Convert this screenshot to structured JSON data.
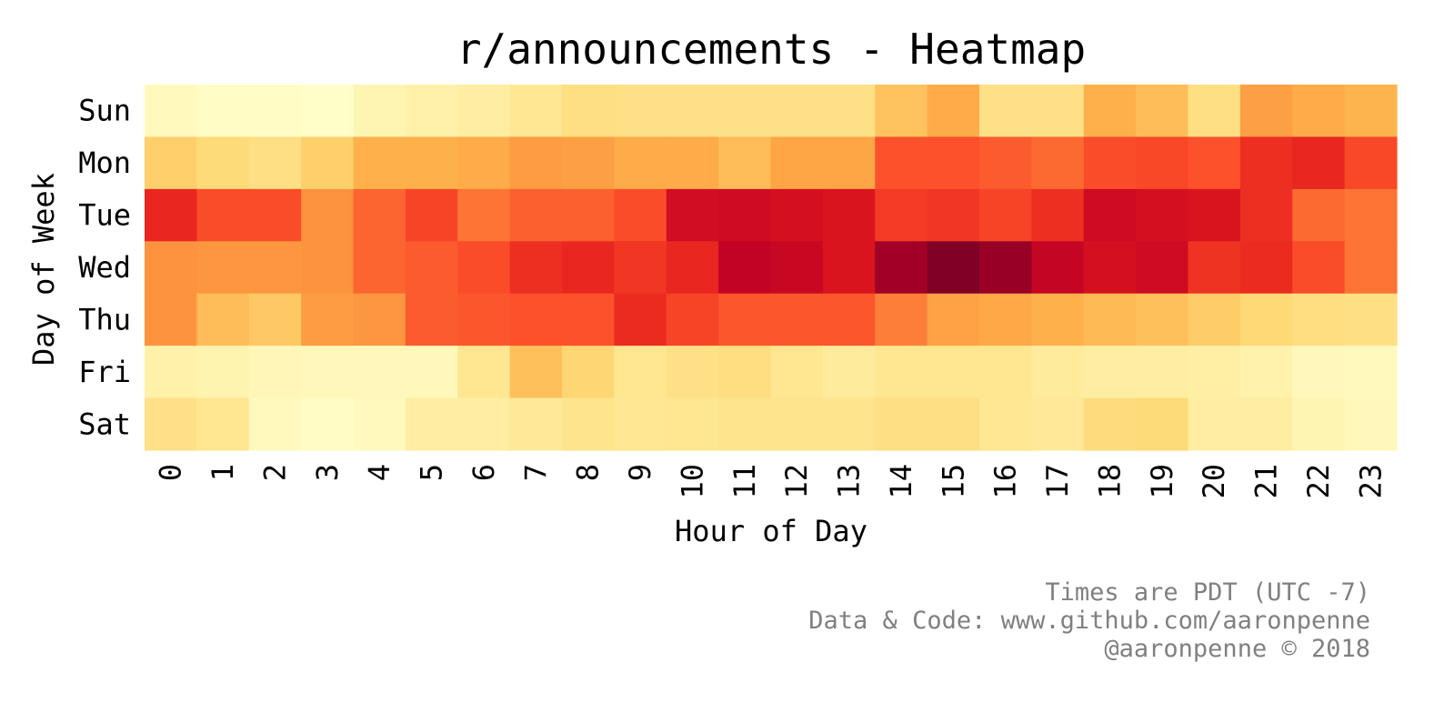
{
  "chart_data": {
    "type": "heatmap",
    "title": "r/announcements - Heatmap",
    "xlabel": "Hour of Day",
    "ylabel": "Day of Week",
    "x": [
      "0",
      "1",
      "2",
      "3",
      "4",
      "5",
      "6",
      "7",
      "8",
      "9",
      "10",
      "11",
      "12",
      "13",
      "14",
      "15",
      "16",
      "17",
      "18",
      "19",
      "20",
      "21",
      "22",
      "23"
    ],
    "y": [
      "Sun",
      "Mon",
      "Tue",
      "Wed",
      "Thu",
      "Fri",
      "Sat"
    ],
    "colormap": "YlOrRd",
    "values": [
      [
        0.04,
        0.02,
        0.02,
        0.01,
        0.07,
        0.1,
        0.12,
        0.16,
        0.21,
        0.2,
        0.2,
        0.2,
        0.2,
        0.2,
        0.32,
        0.4,
        0.2,
        0.2,
        0.38,
        0.34,
        0.21,
        0.44,
        0.4,
        0.37
      ],
      [
        0.28,
        0.24,
        0.21,
        0.28,
        0.38,
        0.38,
        0.4,
        0.45,
        0.44,
        0.4,
        0.4,
        0.34,
        0.42,
        0.42,
        0.62,
        0.62,
        0.6,
        0.57,
        0.63,
        0.64,
        0.62,
        0.7,
        0.72,
        0.64
      ],
      [
        0.72,
        0.63,
        0.63,
        0.48,
        0.58,
        0.65,
        0.55,
        0.59,
        0.59,
        0.63,
        0.81,
        0.82,
        0.8,
        0.78,
        0.67,
        0.68,
        0.65,
        0.7,
        0.82,
        0.8,
        0.78,
        0.7,
        0.57,
        0.55
      ],
      [
        0.48,
        0.47,
        0.47,
        0.48,
        0.58,
        0.6,
        0.63,
        0.7,
        0.72,
        0.68,
        0.72,
        0.86,
        0.84,
        0.78,
        0.93,
        1.0,
        0.95,
        0.85,
        0.8,
        0.82,
        0.69,
        0.71,
        0.63,
        0.55
      ],
      [
        0.48,
        0.34,
        0.3,
        0.45,
        0.47,
        0.6,
        0.61,
        0.62,
        0.62,
        0.71,
        0.65,
        0.61,
        0.61,
        0.61,
        0.53,
        0.43,
        0.41,
        0.38,
        0.35,
        0.33,
        0.29,
        0.25,
        0.22,
        0.21
      ],
      [
        0.1,
        0.08,
        0.06,
        0.05,
        0.05,
        0.05,
        0.17,
        0.33,
        0.26,
        0.17,
        0.2,
        0.22,
        0.17,
        0.14,
        0.17,
        0.17,
        0.17,
        0.14,
        0.12,
        0.12,
        0.11,
        0.09,
        0.05,
        0.04
      ],
      [
        0.2,
        0.17,
        0.04,
        0.02,
        0.04,
        0.12,
        0.12,
        0.15,
        0.18,
        0.16,
        0.17,
        0.18,
        0.18,
        0.18,
        0.21,
        0.21,
        0.16,
        0.15,
        0.23,
        0.24,
        0.12,
        0.12,
        0.07,
        0.05
      ]
    ]
  },
  "credits": {
    "line1": "Times are PDT (UTC -7)",
    "line2": "Data & Code: www.github.com/aaronpenne",
    "line3": "@aaronpenne © 2018"
  }
}
